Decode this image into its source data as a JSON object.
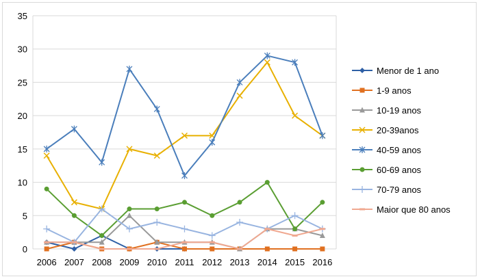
{
  "chart_data": {
    "type": "line",
    "title": "",
    "xlabel": "",
    "ylabel": "",
    "ylim": [
      0,
      35
    ],
    "y_ticks": [
      "0",
      "5",
      "10",
      "15",
      "20",
      "25",
      "30",
      "35"
    ],
    "grid": "horizontal",
    "legend_position": "right",
    "categories": [
      "2006",
      "2007",
      "2008",
      "2009",
      "2010",
      "2011",
      "2012",
      "2013",
      "2014",
      "2015",
      "2016"
    ],
    "series": [
      {
        "name": "Menor de 1 ano",
        "color": "#2e5fa5",
        "marker": "diamond",
        "values": [
          1,
          0,
          2,
          0,
          0,
          0,
          null,
          null,
          null,
          null,
          null
        ]
      },
      {
        "name": "1-9 anos",
        "color": "#e07020",
        "marker": "square",
        "values": [
          0,
          1,
          0,
          0,
          1,
          0,
          0,
          0,
          0,
          0,
          0
        ]
      },
      {
        "name": "10-19 anos",
        "color": "#999999",
        "marker": "triangle",
        "values": [
          1,
          1,
          1,
          5,
          1,
          1,
          1,
          0,
          3,
          3,
          2
        ]
      },
      {
        "name": "20-39anos",
        "color": "#e8b000",
        "marker": "x",
        "values": [
          14,
          7,
          6,
          15,
          14,
          17,
          17,
          23,
          28,
          20,
          17
        ]
      },
      {
        "name": "40-59 anos",
        "color": "#4a7ebb",
        "marker": "star",
        "values": [
          15,
          18,
          13,
          27,
          21,
          11,
          16,
          25,
          29,
          28,
          17
        ]
      },
      {
        "name": "60-69 anos",
        "color": "#5a9e32",
        "marker": "circle",
        "values": [
          9,
          5,
          2,
          6,
          6,
          7,
          5,
          7,
          10,
          3,
          7
        ]
      },
      {
        "name": "70-79 anos",
        "color": "#98b4e0",
        "marker": "plus",
        "values": [
          3,
          1,
          6,
          3,
          4,
          3,
          2,
          4,
          3,
          5,
          3
        ]
      },
      {
        "name": "Maior que 80 anos",
        "color": "#f0a890",
        "marker": "dash",
        "values": [
          1,
          1,
          0,
          0,
          0,
          1,
          1,
          0,
          3,
          2,
          3
        ]
      }
    ]
  }
}
